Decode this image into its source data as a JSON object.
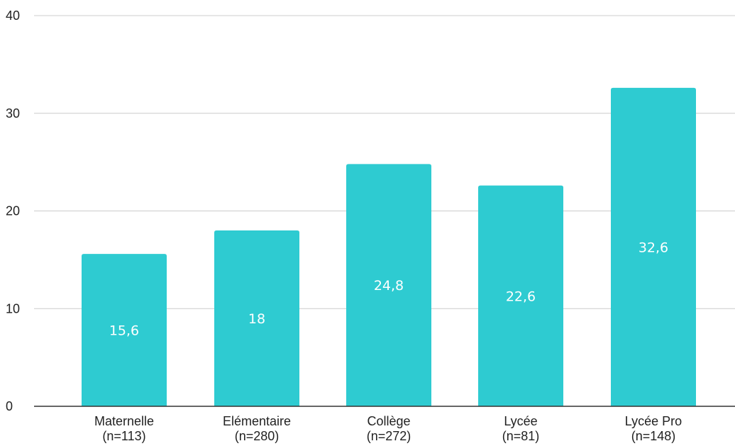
{
  "chart_data": {
    "type": "bar",
    "title": "",
    "xlabel": "",
    "ylabel": "",
    "ylim": [
      0,
      40
    ],
    "yticks": [
      "0",
      "10",
      "20",
      "30",
      "40"
    ],
    "grid": true,
    "legend": "none",
    "bar_color": "#2ecbd1",
    "categories": [
      {
        "line1": "Maternelle",
        "line2": "(n=113)"
      },
      {
        "line1": "Elémentaire",
        "line2": "(n=280)"
      },
      {
        "line1": "Collège",
        "line2": "(n=272)"
      },
      {
        "line1": "Lycée",
        "line2": "(n=81)"
      },
      {
        "line1": "Lycée Pro",
        "line2": "(n=148)"
      }
    ],
    "values": [
      15.6,
      18,
      24.8,
      22.6,
      32.6
    ],
    "data_labels": [
      "15,6",
      "18",
      "24,8",
      "22,6",
      "32,6"
    ]
  }
}
